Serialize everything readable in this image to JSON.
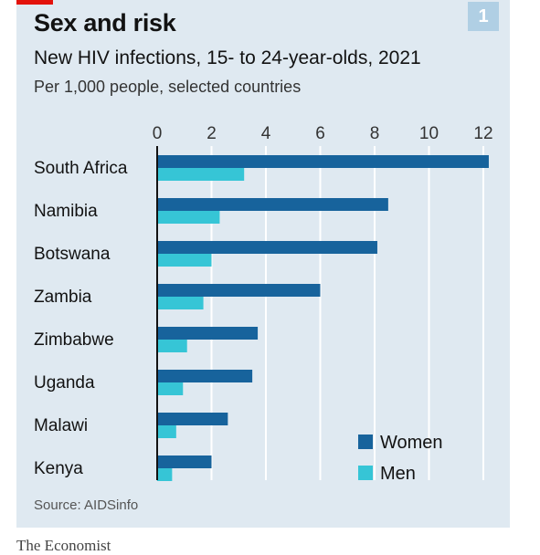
{
  "header": {
    "title": "Sex and risk",
    "subtitle": "New HIV infections, 15- to 24-year-olds, 2021",
    "units": "Per 1,000 people, selected countries",
    "badge": "1"
  },
  "footer": {
    "source": "Source: AIDSinfo",
    "brand": "The Economist"
  },
  "colors": {
    "women": "#17639c",
    "men": "#36c5d6",
    "panel": "#dfe9f1",
    "grid": "#ffffff",
    "accent": "#e3120b"
  },
  "chart_data": {
    "type": "bar",
    "orientation": "horizontal",
    "categories": [
      "South Africa",
      "Namibia",
      "Botswana",
      "Zambia",
      "Zimbabwe",
      "Uganda",
      "Malawi",
      "Kenya"
    ],
    "series": [
      {
        "name": "Women",
        "values": [
          12.2,
          8.5,
          8.1,
          6.0,
          3.7,
          3.5,
          2.6,
          2.0
        ]
      },
      {
        "name": "Men",
        "values": [
          3.2,
          2.3,
          2.0,
          1.7,
          1.1,
          0.95,
          0.7,
          0.55
        ]
      }
    ],
    "x_ticks": [
      "0",
      "2",
      "4",
      "6",
      "8",
      "10",
      "12"
    ],
    "xlim": [
      0,
      12
    ],
    "grid": true,
    "legend_position": "bottom-right"
  }
}
